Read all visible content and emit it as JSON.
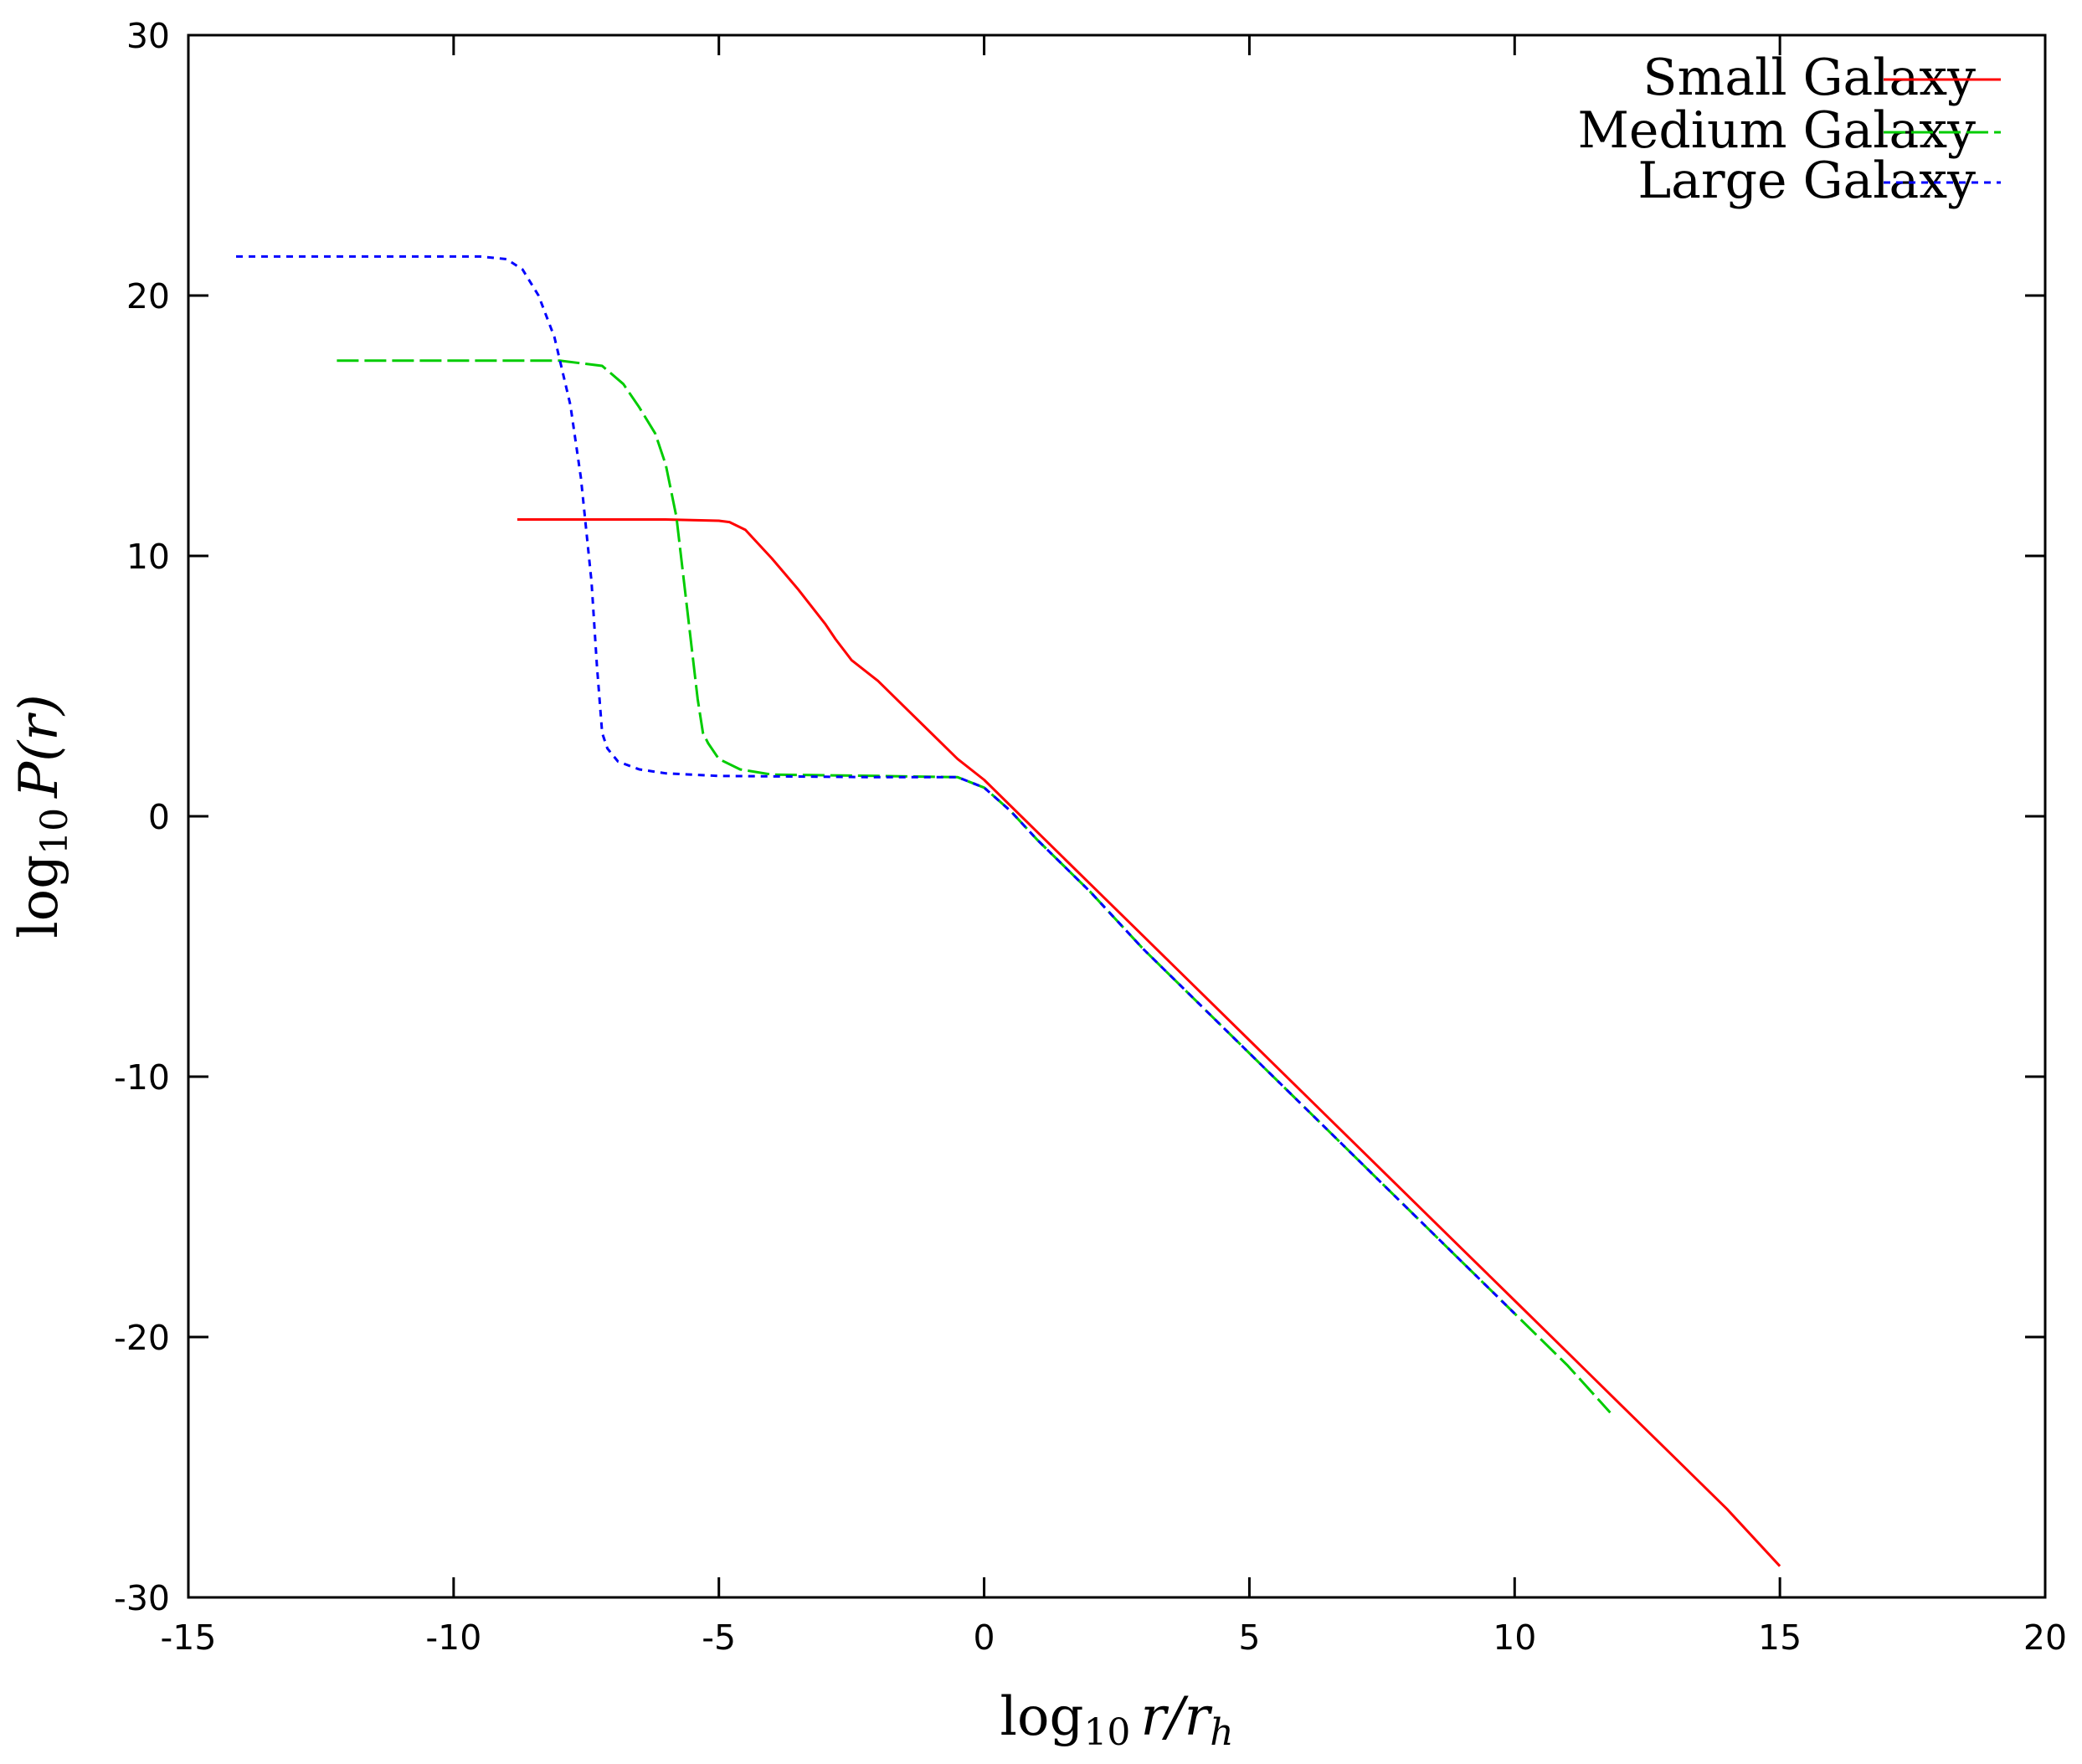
{
  "chart_data": {
    "type": "line",
    "title": "",
    "xlabel": {
      "base": "log",
      "sub": "10",
      "expr": "r/r",
      "expr_sub": "h"
    },
    "ylabel": {
      "base": "log",
      "sub": "10",
      "expr": "P(r)"
    },
    "xlim": [
      -15,
      20
    ],
    "ylim": [
      -30,
      30
    ],
    "xticks": [
      -15,
      -10,
      -5,
      0,
      5,
      10,
      15,
      20
    ],
    "yticks": [
      -30,
      -20,
      -10,
      0,
      10,
      20,
      30
    ],
    "xtick_labels": [
      "-15",
      "-10",
      "-5",
      "0",
      "5",
      "10",
      "15",
      "20"
    ],
    "ytick_labels": [
      "-30",
      "-20",
      "-10",
      "0",
      "10",
      "20",
      "30"
    ],
    "grid": false,
    "legend_position": "top-right",
    "series": [
      {
        "name": "Small Galaxy",
        "color": "#ff0000",
        "dash": "solid",
        "x": [
          -8.8,
          -6.0,
          -5.0,
          -4.8,
          -4.5,
          -4.0,
          -3.5,
          -3.0,
          -2.8,
          -2.5,
          -2.0,
          -1.5,
          -1.0,
          -0.5,
          0.0,
          1.0,
          2.0,
          3.0,
          4.0,
          5.0,
          6.0,
          7.0,
          8.0,
          9.0,
          10.0,
          11.0,
          12.0,
          13.0,
          14.0,
          15.0
        ],
        "y": [
          11.4,
          11.4,
          11.35,
          11.3,
          11.0,
          9.9,
          8.7,
          7.4,
          6.8,
          6.0,
          5.2,
          4.2,
          3.2,
          2.2,
          1.4,
          -0.6,
          -2.6,
          -4.6,
          -6.6,
          -8.6,
          -10.6,
          -12.6,
          -14.6,
          -16.6,
          -18.6,
          -20.6,
          -22.6,
          -24.6,
          -26.6,
          -28.8
        ]
      },
      {
        "name": "Medium Galaxy",
        "color": "#00cc00",
        "dash": "long-dash",
        "x": [
          -12.2,
          -8.0,
          -7.2,
          -6.8,
          -6.5,
          -6.2,
          -6.0,
          -5.8,
          -5.6,
          -5.4,
          -5.3,
          -5.2,
          -5.0,
          -4.6,
          -4.0,
          -2.0,
          -0.5,
          0.0,
          0.5,
          1.0,
          2.0,
          3.0,
          4.0,
          5.0,
          6.0,
          7.0,
          8.0,
          9.0,
          10.0,
          11.0,
          11.8
        ],
        "y": [
          17.5,
          17.5,
          17.3,
          16.6,
          15.7,
          14.7,
          13.5,
          11.5,
          8.0,
          4.5,
          3.2,
          2.8,
          2.2,
          1.8,
          1.6,
          1.55,
          1.5,
          1.1,
          0.2,
          -0.9,
          -2.9,
          -5.1,
          -7.1,
          -9.1,
          -11.1,
          -13.1,
          -15.1,
          -17.1,
          -19.1,
          -21.1,
          -22.9
        ]
      },
      {
        "name": "Large Galaxy",
        "color": "#0000ff",
        "dash": "dotted",
        "x": [
          -14.1,
          -9.5,
          -9.0,
          -8.7,
          -8.4,
          -8.1,
          -7.8,
          -7.6,
          -7.4,
          -7.3,
          -7.2,
          -7.1,
          -6.9,
          -6.5,
          -6.0,
          -5.0,
          -2.0,
          -0.5,
          0.0,
          0.5,
          1.0,
          2.0,
          3.0,
          4.0,
          5.0,
          6.0,
          7.0,
          8.0,
          9.0,
          10.0
        ],
        "y": [
          21.5,
          21.5,
          21.4,
          21.0,
          20.0,
          18.4,
          15.8,
          13.0,
          9.0,
          5.8,
          3.2,
          2.6,
          2.1,
          1.8,
          1.65,
          1.55,
          1.5,
          1.5,
          1.1,
          0.2,
          -0.9,
          -2.9,
          -5.1,
          -7.1,
          -9.1,
          -11.1,
          -13.1,
          -15.1,
          -17.1,
          -19.1
        ]
      }
    ]
  }
}
